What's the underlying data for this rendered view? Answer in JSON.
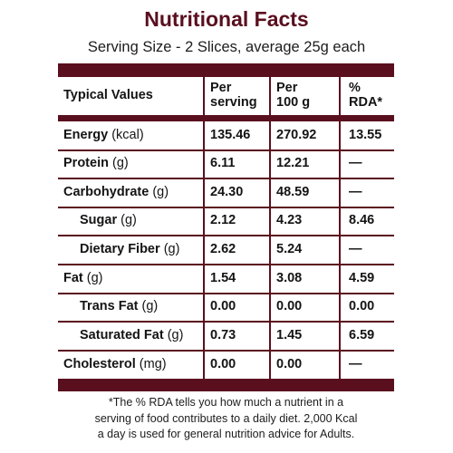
{
  "title": "Nutritional Facts",
  "serving": "Serving Size - 2 Slices, average 25g each",
  "headers": {
    "typical": "Typical Values",
    "per_serving_1": "Per",
    "per_serving_2": "serving",
    "per_100_1": "Per",
    "per_100_2": "100 g",
    "rda_1": "%",
    "rda_2": "RDA*"
  },
  "rows": [
    {
      "name": "Energy",
      "unit": "(kcal)",
      "per_serving": "135.46",
      "per_100g": "270.92",
      "rda": "13.55"
    },
    {
      "name": "Protein",
      "unit": "(g)",
      "per_serving": "6.11",
      "per_100g": "12.21",
      "rda": "—"
    },
    {
      "name": "Carbohydrate",
      "unit": "(g)",
      "per_serving": "24.30",
      "per_100g": "48.59",
      "rda": "—"
    },
    {
      "name": "Sugar",
      "unit": "(g)",
      "per_serving": "2.12",
      "per_100g": "4.23",
      "rda": "8.46"
    },
    {
      "name": "Dietary Fiber",
      "unit": "(g)",
      "per_serving": "2.62",
      "per_100g": "5.24",
      "rda": "—"
    },
    {
      "name": "Fat",
      "unit": "(g)",
      "per_serving": "1.54",
      "per_100g": "3.08",
      "rda": "4.59"
    },
    {
      "name": "Trans Fat",
      "unit": "(g)",
      "per_serving": "0.00",
      "per_100g": "0.00",
      "rda": "0.00"
    },
    {
      "name": "Saturated Fat",
      "unit": "(g)",
      "per_serving": "0.73",
      "per_100g": "1.45",
      "rda": "6.59"
    },
    {
      "name": "Cholesterol",
      "unit": "(mg)",
      "per_serving": "0.00",
      "per_100g": "0.00",
      "rda": "—"
    }
  ],
  "footnote": {
    "line1": "*The % RDA tells you how much a nutrient in a",
    "line2": "serving of food contributes to a daily diet. 2,000 Kcal",
    "line3": "a day is used for general nutrition advice for Adults."
  },
  "colors": {
    "accent": "#5a0f1e",
    "text": "#141414"
  }
}
